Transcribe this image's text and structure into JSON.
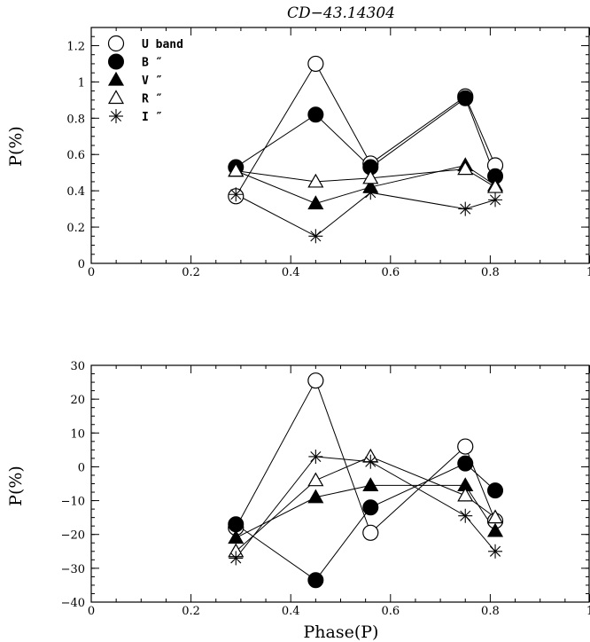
{
  "title": "CD−43.14304",
  "xlabel": "Phase(P)",
  "legend_entries": [
    {
      "marker": "open-circle",
      "label": "U band"
    },
    {
      "marker": "filled-circle",
      "label": "B  ″"
    },
    {
      "marker": "filled-triangle",
      "label": "V  ″"
    },
    {
      "marker": "open-triangle",
      "label": "R  ″"
    },
    {
      "marker": "asterisk",
      "label": "I  ″"
    }
  ],
  "chart_data": [
    {
      "type": "line",
      "title": "CD−43.14304",
      "xlabel": "",
      "ylabel": "P(%)",
      "xlim": [
        0,
        1
      ],
      "ylim": [
        0,
        1.3
      ],
      "xticks": [
        "0",
        "0.2",
        "0.4",
        "0.6",
        "0.8",
        "1"
      ],
      "yticks": [
        "0",
        "0.2",
        "0.4",
        "0.6",
        "0.8",
        "1",
        "1.2"
      ],
      "legend_position": "top-left",
      "x": [
        0.29,
        0.45,
        0.56,
        0.75,
        0.81
      ],
      "series": [
        {
          "name": "U band",
          "marker": "open-circle",
          "values": [
            0.37,
            1.1,
            0.55,
            0.92,
            0.54
          ]
        },
        {
          "name": "B",
          "marker": "filled-circle",
          "values": [
            0.53,
            0.82,
            0.53,
            0.91,
            0.48
          ]
        },
        {
          "name": "V",
          "marker": "filled-triangle",
          "values": [
            0.51,
            0.33,
            0.42,
            0.54,
            0.43
          ]
        },
        {
          "name": "R",
          "marker": "open-triangle",
          "values": [
            0.51,
            0.45,
            0.47,
            0.52,
            0.42
          ]
        },
        {
          "name": "I",
          "marker": "asterisk",
          "values": [
            0.38,
            0.15,
            0.39,
            0.3,
            0.35
          ]
        }
      ]
    },
    {
      "type": "line",
      "title": "",
      "xlabel": "Phase(P)",
      "ylabel": "P(%)",
      "xlim": [
        0,
        1
      ],
      "ylim": [
        -40,
        30
      ],
      "xticks": [
        "0",
        "0.2",
        "0.4",
        "0.6",
        "0.8",
        "1"
      ],
      "yticks": [
        "−40",
        "−30",
        "−20",
        "−10",
        "0",
        "10",
        "20",
        "30"
      ],
      "x": [
        0.29,
        0.45,
        0.56,
        0.75,
        0.81
      ],
      "series": [
        {
          "name": "U band",
          "marker": "open-circle",
          "values": [
            -18,
            25.5,
            -19.5,
            6,
            -16
          ]
        },
        {
          "name": "B",
          "marker": "filled-circle",
          "values": [
            -17,
            -33.5,
            -12,
            1,
            -7
          ]
        },
        {
          "name": "V",
          "marker": "filled-triangle",
          "values": [
            -21,
            -9,
            -5.5,
            -5.5,
            -19
          ]
        },
        {
          "name": "R",
          "marker": "open-triangle",
          "values": [
            -25,
            -4,
            3,
            -8.5,
            -15
          ]
        },
        {
          "name": "I",
          "marker": "asterisk",
          "values": [
            -27,
            3,
            1.5,
            -14.5,
            -25
          ]
        }
      ]
    }
  ]
}
